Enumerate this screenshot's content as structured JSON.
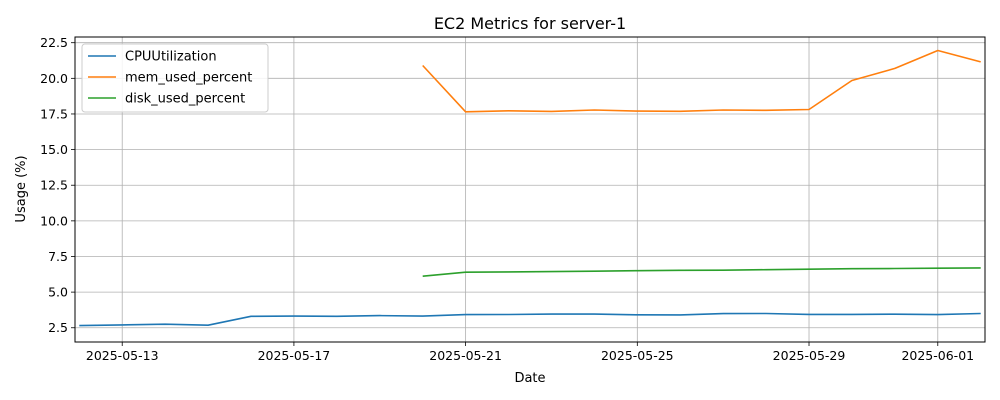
{
  "chart_data": {
    "type": "line",
    "title": "EC2 Metrics for server-1",
    "xlabel": "Date",
    "ylabel": "Usage (%)",
    "xlim": [
      "2025-05-11",
      "2025-06-02"
    ],
    "ylim": [
      1.5,
      22.9
    ],
    "xticks": [
      "2025-05-13",
      "2025-05-17",
      "2025-05-21",
      "2025-05-25",
      "2025-05-29",
      "2025-06-01"
    ],
    "yticks": [
      2.5,
      5.0,
      7.5,
      10.0,
      12.5,
      15.0,
      17.5,
      20.0,
      22.5
    ],
    "ytick_labels": [
      "2.5",
      "5.0",
      "7.5",
      "10.0",
      "12.5",
      "15.0",
      "17.5",
      "20.0",
      "22.5"
    ],
    "grid": true,
    "legend_position": "top-left",
    "series": [
      {
        "name": "CPUUtilization",
        "color": "#1f77b4",
        "x": [
          "2025-05-12",
          "2025-05-13",
          "2025-05-14",
          "2025-05-15",
          "2025-05-16",
          "2025-05-17",
          "2025-05-18",
          "2025-05-19",
          "2025-05-20",
          "2025-05-21",
          "2025-05-22",
          "2025-05-23",
          "2025-05-24",
          "2025-05-25",
          "2025-05-26",
          "2025-05-27",
          "2025-05-28",
          "2025-05-29",
          "2025-05-30",
          "2025-05-31",
          "2025-06-01",
          "2025-06-02"
        ],
        "y": [
          2.65,
          2.7,
          2.75,
          2.68,
          3.3,
          3.32,
          3.3,
          3.35,
          3.32,
          3.42,
          3.43,
          3.46,
          3.46,
          3.41,
          3.4,
          3.49,
          3.5,
          3.44,
          3.44,
          3.45,
          3.42,
          3.5
        ]
      },
      {
        "name": "mem_used_percent",
        "color": "#ff7f0e",
        "x": [
          "2025-05-20",
          "2025-05-21",
          "2025-05-22",
          "2025-05-23",
          "2025-05-24",
          "2025-05-25",
          "2025-05-26",
          "2025-05-27",
          "2025-05-28",
          "2025-05-29",
          "2025-05-30",
          "2025-05-31",
          "2025-06-01",
          "2025-06-02"
        ],
        "y": [
          20.9,
          17.65,
          17.72,
          17.68,
          17.78,
          17.7,
          17.69,
          17.78,
          17.76,
          17.81,
          19.85,
          20.7,
          21.95,
          21.15
        ]
      },
      {
        "name": "disk_used_percent",
        "color": "#2ca02c",
        "x": [
          "2025-05-20",
          "2025-05-21",
          "2025-05-22",
          "2025-05-23",
          "2025-05-24",
          "2025-05-25",
          "2025-05-26",
          "2025-05-27",
          "2025-05-28",
          "2025-05-29",
          "2025-05-30",
          "2025-05-31",
          "2025-06-01",
          "2025-06-02"
        ],
        "y": [
          6.12,
          6.4,
          6.42,
          6.44,
          6.47,
          6.5,
          6.53,
          6.54,
          6.57,
          6.61,
          6.64,
          6.66,
          6.68,
          6.7
        ]
      }
    ]
  }
}
